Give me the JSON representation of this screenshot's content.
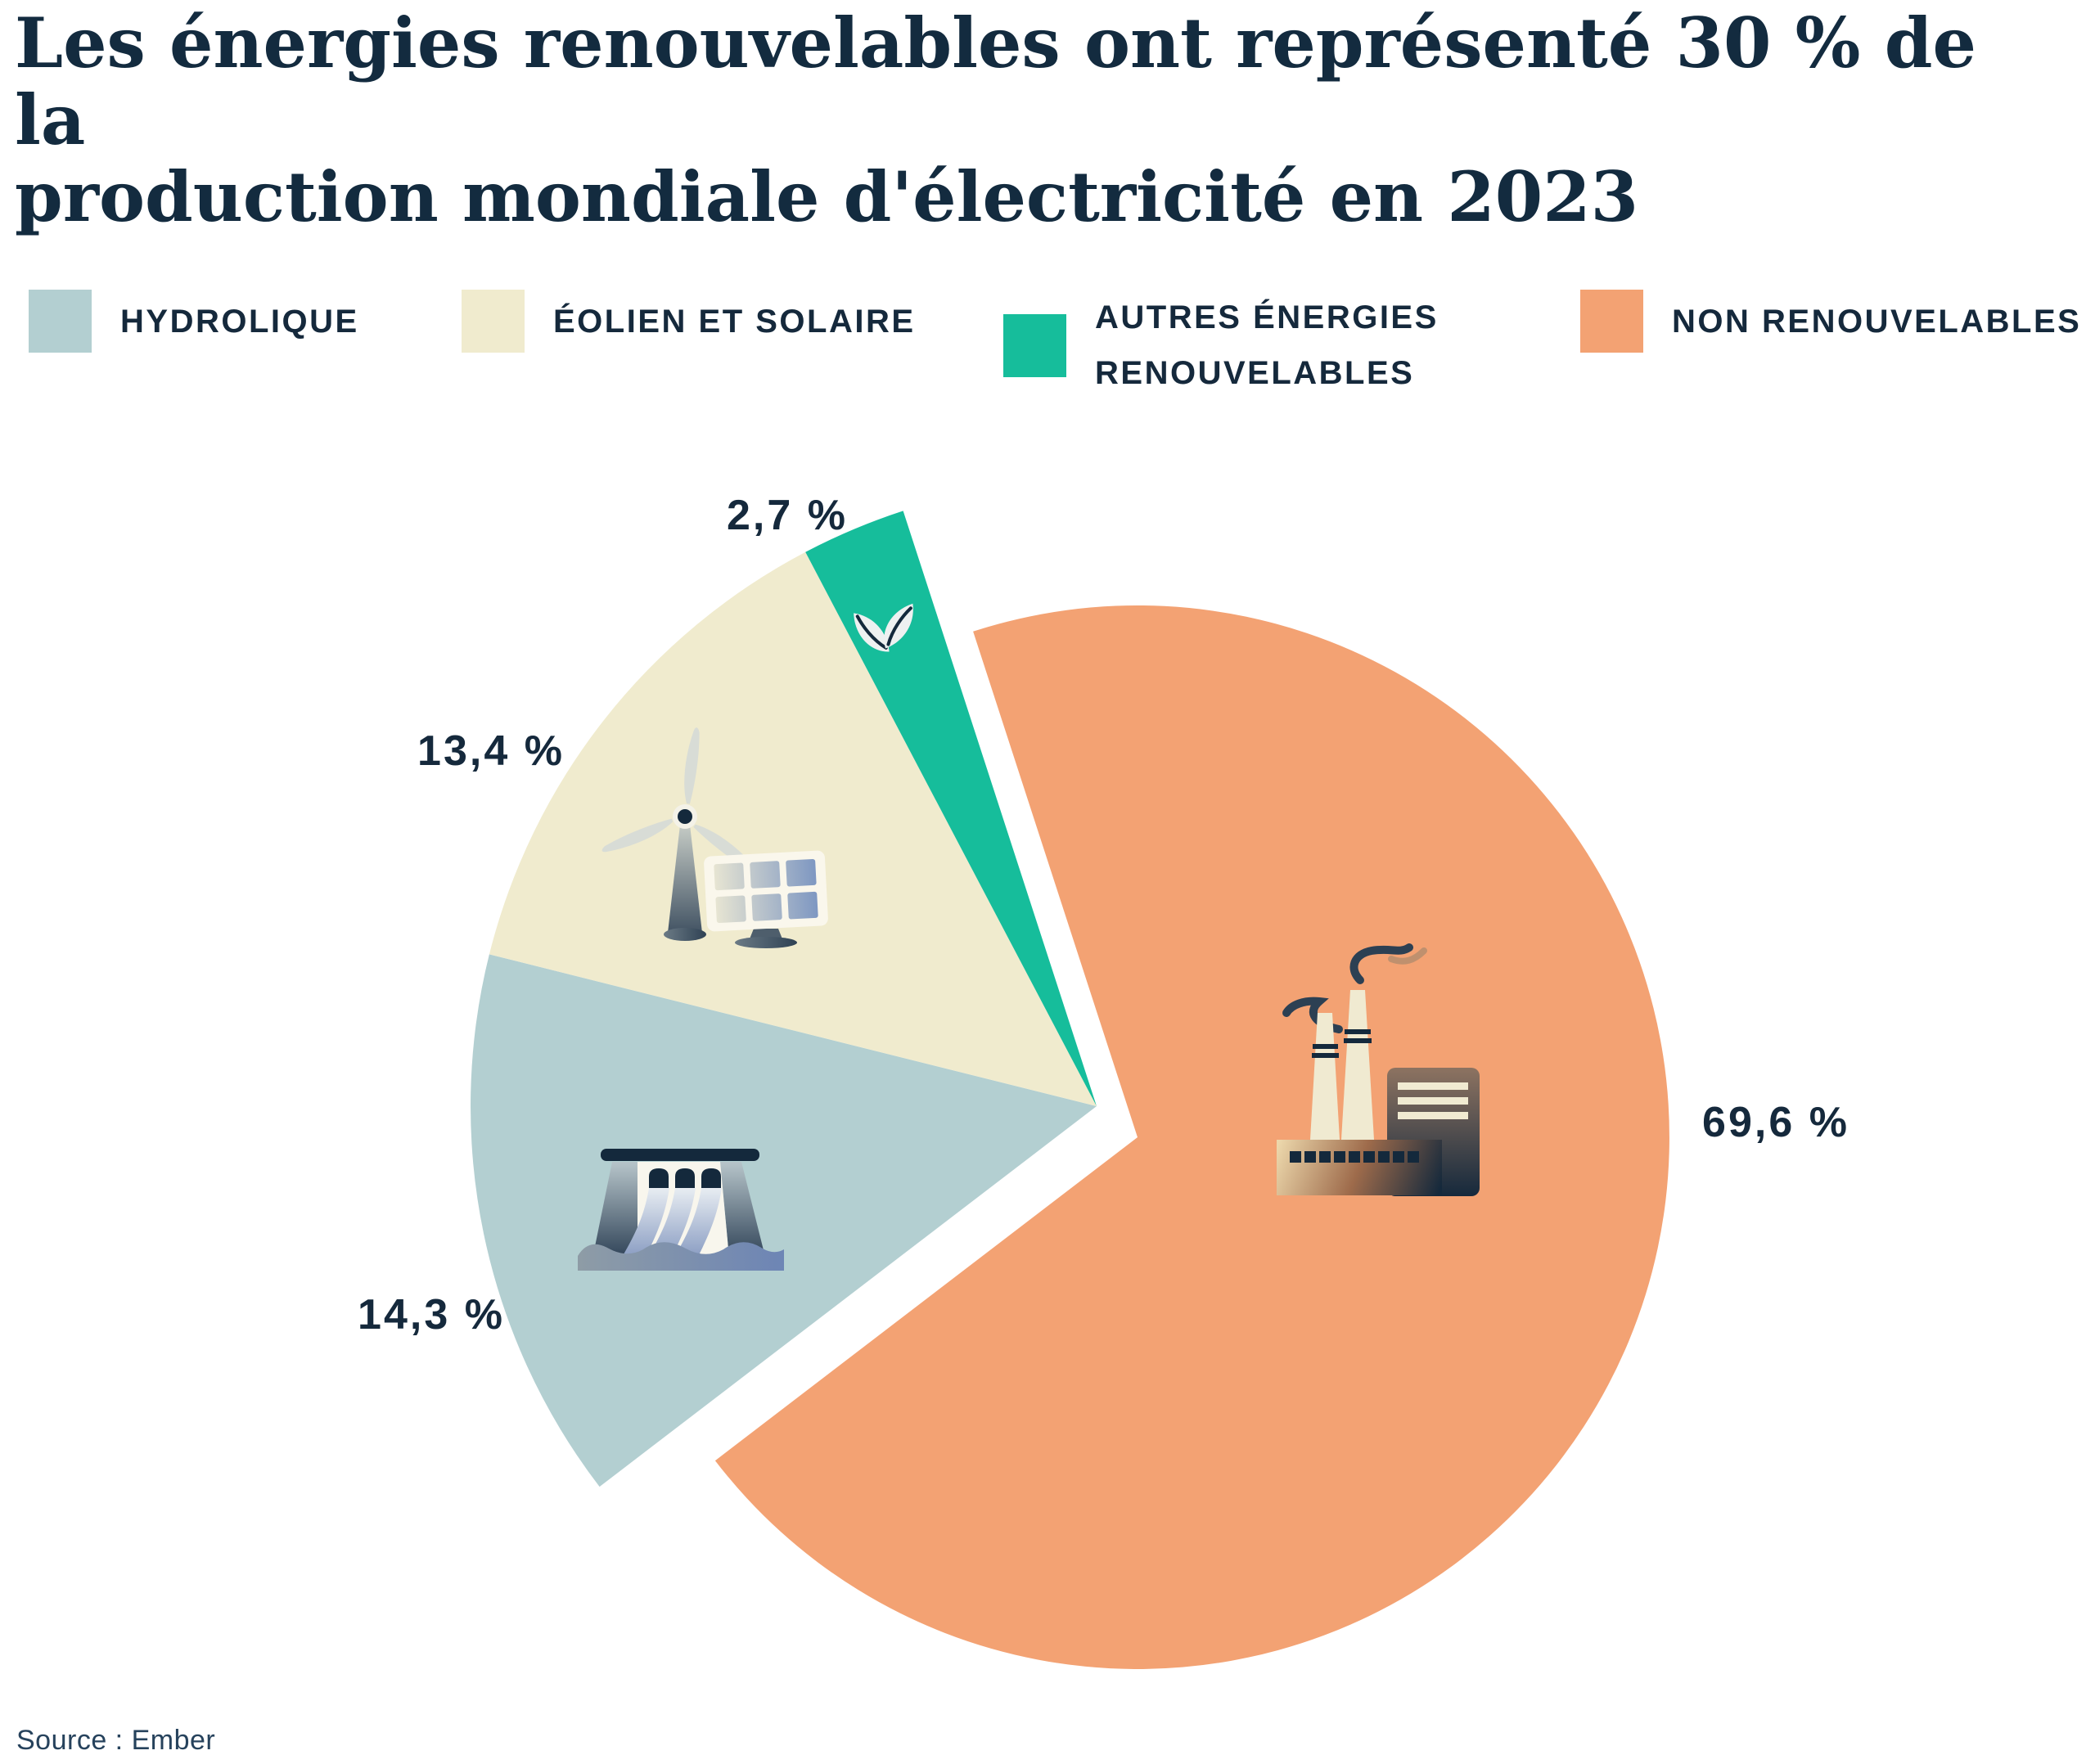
{
  "header": {
    "title": "Les énergies renouvelables ont représenté 30 % de la\nproduction mondiale d'électricité en 2023"
  },
  "legend": {
    "items": [
      {
        "id": "hydrolique",
        "label": "HYDROLIQUE",
        "color": "#b3cfd1"
      },
      {
        "id": "eolien_et_solaire",
        "label": "ÉOLIEN ET SOLAIRE",
        "color": "#f0ebce"
      },
      {
        "id": "autres_energies_renouvelables",
        "label": "AUTRES ÉNERGIES RENOUVELABLES",
        "color": "#16bd9b"
      },
      {
        "id": "non_renouvelables",
        "label": "NON RENOUVELABLES",
        "color": "#f3a273"
      }
    ]
  },
  "chart_data": {
    "type": "pie",
    "title": "Les énergies renouvelables ont représenté 30 % de la production mondiale d'électricité en 2023",
    "unit": "%",
    "legend_position": "top",
    "exploded": true,
    "slices": [
      {
        "id": "hydrolique",
        "label": "HYDROLIQUE",
        "value": 14.3,
        "value_label": "14,3 %",
        "color": "#b3cfd1",
        "icon": "dam-icon"
      },
      {
        "id": "eolien_et_solaire",
        "label": "ÉOLIEN ET SOLAIRE",
        "value": 13.4,
        "value_label": "13,4 %",
        "color": "#f0ebce",
        "icon": "wind-turbine-and-solar-panel-icon"
      },
      {
        "id": "autres_energies_renouvelables",
        "label": "AUTRES ÉNERGIES RENOUVELABLES",
        "value": 2.7,
        "value_label": "2,7 %",
        "color": "#16bd9b",
        "icon": "leaf-icon"
      },
      {
        "id": "non_renouvelables",
        "label": "NON RENOUVELABLES",
        "value": 69.6,
        "value_label": "69,6 %",
        "color": "#f3a273",
        "icon": "factory-icon"
      }
    ]
  },
  "footer": {
    "source": "Source : Ember"
  },
  "colors": {
    "text": "#15293c",
    "background": "#ffffff"
  }
}
